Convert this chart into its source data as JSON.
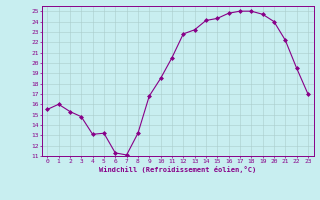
{
  "x": [
    0,
    1,
    2,
    3,
    4,
    5,
    6,
    7,
    8,
    9,
    10,
    11,
    12,
    13,
    14,
    15,
    16,
    17,
    18,
    19,
    20,
    21,
    22,
    23
  ],
  "y": [
    15.5,
    16.0,
    15.3,
    14.8,
    13.1,
    13.2,
    11.3,
    11.1,
    13.2,
    16.8,
    18.5,
    20.5,
    22.8,
    23.2,
    24.1,
    24.3,
    24.8,
    25.0,
    25.0,
    24.7,
    24.0,
    22.2,
    19.5,
    17.0
  ],
  "xlim": [
    -0.5,
    23.5
  ],
  "ylim": [
    11,
    25.5
  ],
  "yticks": [
    11,
    12,
    13,
    14,
    15,
    16,
    17,
    18,
    19,
    20,
    21,
    22,
    23,
    24,
    25
  ],
  "xticks": [
    0,
    1,
    2,
    3,
    4,
    5,
    6,
    7,
    8,
    9,
    10,
    11,
    12,
    13,
    14,
    15,
    16,
    17,
    18,
    19,
    20,
    21,
    22,
    23
  ],
  "xlabel": "Windchill (Refroidissement éolien,°C)",
  "line_color": "#880088",
  "marker_color": "#880088",
  "bg_color": "#c8eef0",
  "grid_color": "#aacccc",
  "axis_color": "#880088",
  "tick_color": "#880088",
  "label_color": "#880088"
}
